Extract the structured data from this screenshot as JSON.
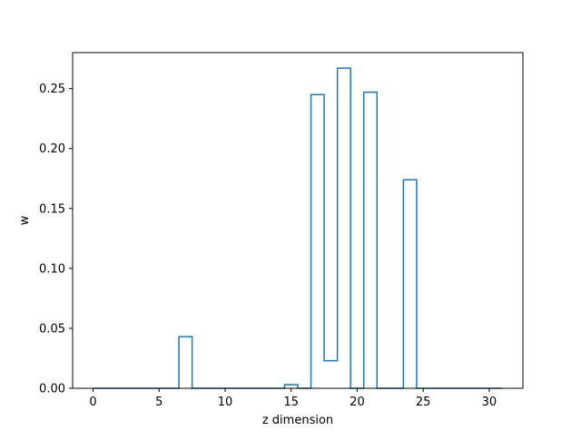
{
  "chart_data": {
    "type": "step",
    "title": "",
    "xlabel": "z dimension",
    "ylabel": "w",
    "xlim": [
      -1.55,
      32.55
    ],
    "ylim": [
      0,
      0.28
    ],
    "xticks": [
      0,
      5,
      10,
      15,
      20,
      25,
      30
    ],
    "xtick_labels": [
      "0",
      "5",
      "10",
      "15",
      "20",
      "25",
      "30"
    ],
    "yticks": [
      0,
      0.05,
      0.1,
      0.15,
      0.2,
      0.25
    ],
    "ytick_labels": [
      "0.00",
      "0.05",
      "0.10",
      "0.15",
      "0.20",
      "0.25"
    ],
    "step_where": "mid",
    "grid": false,
    "series": [
      {
        "color": "#1f77b4",
        "x": [
          0,
          1,
          2,
          3,
          4,
          5,
          6,
          7,
          8,
          9,
          10,
          11,
          12,
          13,
          14,
          15,
          16,
          17,
          18,
          19,
          20,
          21,
          22,
          23,
          24,
          25,
          26,
          27,
          28,
          29,
          30,
          31
        ],
        "y": [
          0,
          0,
          0,
          0,
          0,
          0,
          0,
          0.043,
          0,
          0,
          0,
          0,
          0,
          0,
          0,
          0.003,
          0,
          0.245,
          0.023,
          0.267,
          0,
          0.247,
          0,
          0,
          0.174,
          0,
          0,
          0,
          0,
          0,
          0,
          0
        ]
      }
    ]
  }
}
